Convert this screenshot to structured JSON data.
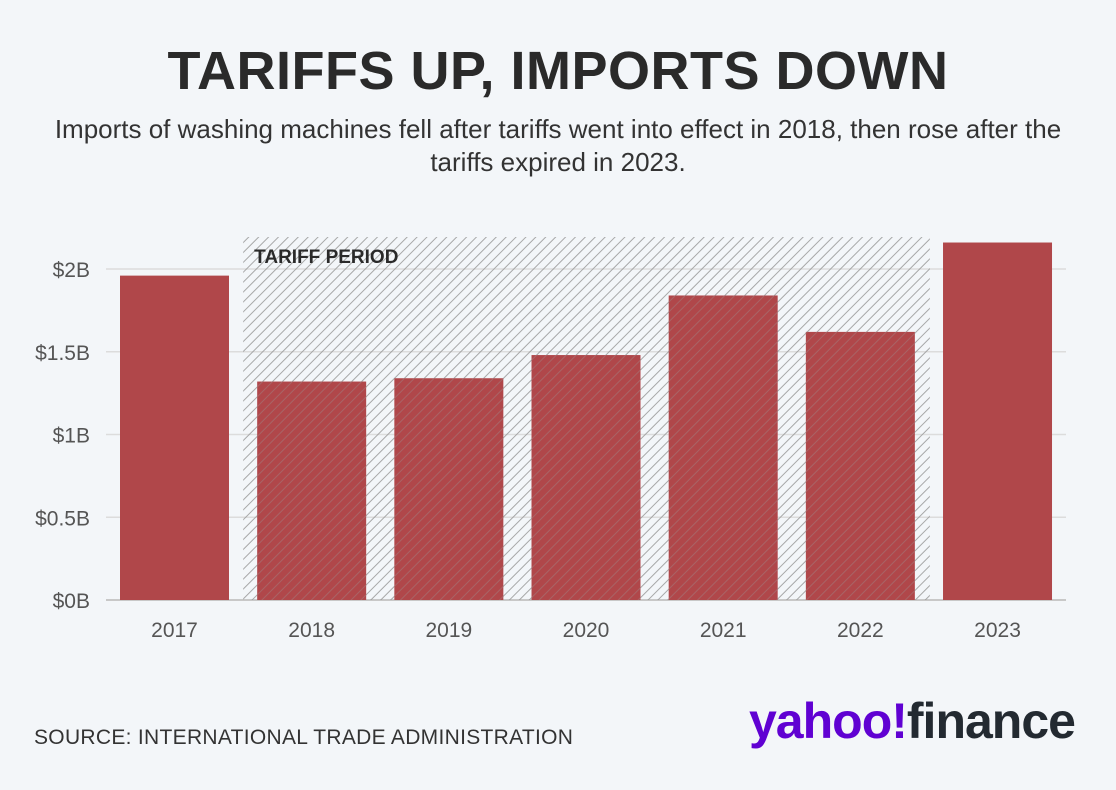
{
  "title": "TARIFFS UP, IMPORTS DOWN",
  "subtitle": "Imports of washing machines fell after tariffs went into effect in 2018, then rose after the tariffs expired in 2023.",
  "source": "SOURCE: INTERNATIONAL TRADE ADMINISTRATION",
  "logo": {
    "part1": "yahoo!",
    "part2": "finance"
  },
  "colors": {
    "bar": "#b0474a",
    "hatch": "#9a9a9a",
    "grid": "#dcdcdc"
  },
  "chart_data": {
    "type": "bar",
    "title": "TARIFFS UP, IMPORTS DOWN",
    "xlabel": "",
    "ylabel": "",
    "categories": [
      "2017",
      "2018",
      "2019",
      "2020",
      "2021",
      "2022",
      "2023"
    ],
    "values": [
      1.96,
      1.32,
      1.34,
      1.48,
      1.84,
      1.62,
      2.16
    ],
    "unit": "billion USD",
    "ylim": [
      0,
      2.2
    ],
    "yticks": [
      0,
      0.5,
      1,
      1.5,
      2
    ],
    "ytick_labels": [
      "$0B",
      "$0.5B",
      "$1B",
      "$1.5B",
      "$2B"
    ],
    "grid": true,
    "annotation": {
      "label": "TARIFF PERIOD",
      "from": "2018",
      "to": "2022"
    }
  }
}
